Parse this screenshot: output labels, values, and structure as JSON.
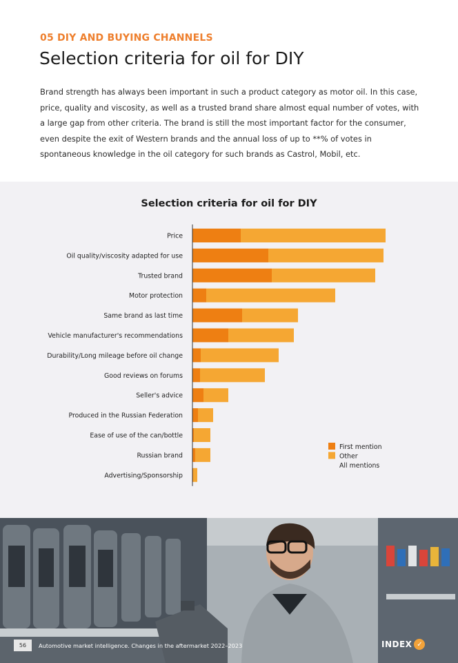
{
  "header": {
    "section_label": "05 DIY AND BUYING CHANNELS",
    "title": "Selection criteria for oil for DIY"
  },
  "intro_text": "Brand strength has always been important in such a product category as motor oil. In this case, price, quality and viscosity, as well as a trusted brand share almost equal number of votes, with a large gap from other criteria. The brand is still the most important factor for the consumer, even despite the exit of Western brands and the annual loss of up to **% of votes in spontaneous knowledge in the oil category for such brands as Castrol, Mobil, etc.",
  "chart_data": {
    "type": "bar",
    "orientation": "horizontal",
    "stacked": true,
    "title": "Selection criteria for oil for DIY",
    "categories": [
      "Price",
      "Oil quality/viscosity adapted for use",
      "Trusted brand",
      "Motor protection",
      "Same brand as last time",
      "Vehicle manufacturer's recommendations",
      "Durability/Long mileage before oil change",
      "Good reviews on forums",
      "Seller's advice",
      "Produced in the Russian Federation",
      "Ease of use of the can/bottle",
      "Russian brand",
      "Advertising/Sponsorship"
    ],
    "series": [
      {
        "name": "First mention",
        "color": "#ee7f12",
        "values": [
          7.0,
          11.0,
          11.5,
          2.0,
          7.2,
          5.2,
          1.2,
          1.1,
          1.6,
          0.8,
          0.2,
          0.4,
          0.1
        ]
      },
      {
        "name": "Other",
        "color": "#f5a733",
        "values": [
          21.0,
          16.7,
          15.0,
          18.7,
          8.1,
          9.5,
          11.3,
          9.4,
          3.6,
          2.2,
          2.4,
          2.2,
          0.6
        ]
      }
    ],
    "legend_extra": "All mentions",
    "legend_position": "right",
    "xlim": [
      0,
      30
    ],
    "grid": false
  },
  "footer": {
    "page_number": "56",
    "text": "Automotive market intelligence. Changes in the aftermarket 2022–2023",
    "logo_text": "INDEX",
    "logo_mark": "✓"
  },
  "photo": {
    "subject": "man-holding-oil-can-photo",
    "colors": {
      "shelf_dark": "#2f3640",
      "shelf_light": "#b7bcc0",
      "hoodie": "#9aa1a6",
      "skin": "#d7a98b",
      "hair": "#3a2a20",
      "can": "#555c63"
    }
  }
}
